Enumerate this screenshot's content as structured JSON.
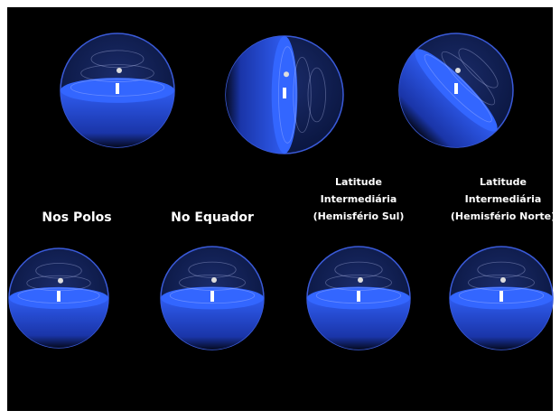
{
  "panels": [
    {
      "label_lines": [
        "Nos Polos"
      ]
    },
    {
      "label_lines": [
        "No Equador"
      ]
    },
    {
      "label_lines": [
        "Latitude",
        "Intermediária",
        "(Hemisfério Sul)"
      ]
    },
    {
      "label_lines": [
        "Latitude",
        "Intermediária",
        "(Hemisfério Norte)"
      ]
    }
  ]
}
